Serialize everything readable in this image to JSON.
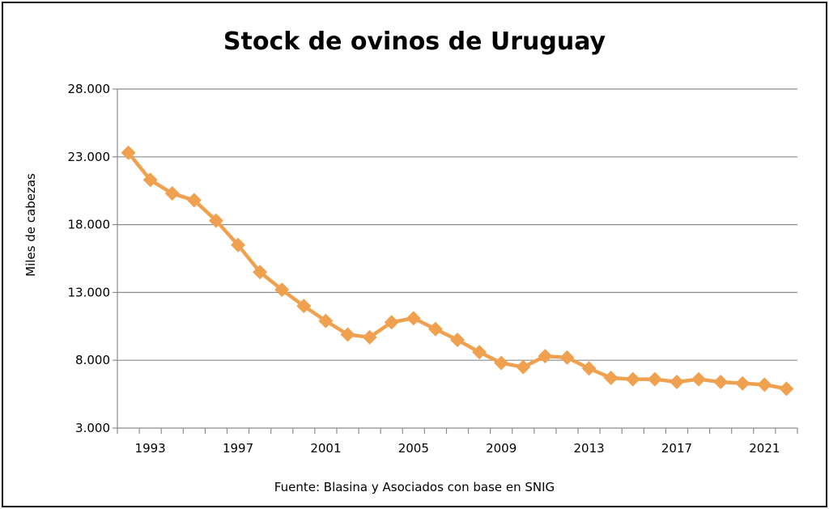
{
  "chart_data": {
    "type": "line",
    "title": "Stock de ovinos de Uruguay",
    "ylabel": "Miles de cabezas",
    "xlabel": "",
    "source_note": "Fuente: Blasina y Asociados con base en SNIG",
    "ylim": [
      3000,
      28000
    ],
    "yticks": [
      3000,
      8000,
      13000,
      18000,
      23000,
      28000
    ],
    "ytick_labels": [
      "3.000",
      "8.000",
      "13.000",
      "18.000",
      "23.000",
      "28.000"
    ],
    "xlim": [
      1991.5,
      2022.5
    ],
    "xticks": [
      1993,
      1997,
      2001,
      2005,
      2009,
      2013,
      2017,
      2021
    ],
    "xtick_labels": [
      "1993",
      "1997",
      "2001",
      "2005",
      "2009",
      "2013",
      "2017",
      "2021"
    ],
    "grid": true,
    "line_color": "#F0A150",
    "series": [
      {
        "x": [
          1992,
          1993,
          1994,
          1995,
          1996,
          1997,
          1998,
          1999,
          2000,
          2001,
          2002,
          2003,
          2004,
          2005,
          2006,
          2007,
          2008,
          2009,
          2010,
          2011,
          2012,
          2013,
          2014,
          2015,
          2016,
          2017,
          2018,
          2019,
          2020,
          2021,
          2022
        ],
        "values": [
          23300,
          21300,
          20300,
          19800,
          18300,
          16500,
          14500,
          13200,
          12000,
          10900,
          9900,
          9700,
          10800,
          11100,
          10300,
          9500,
          8600,
          7800,
          7500,
          8300,
          8200,
          7400,
          6700,
          6600,
          6600,
          6400,
          6600,
          6400,
          6300,
          6200,
          5900
        ]
      }
    ]
  }
}
